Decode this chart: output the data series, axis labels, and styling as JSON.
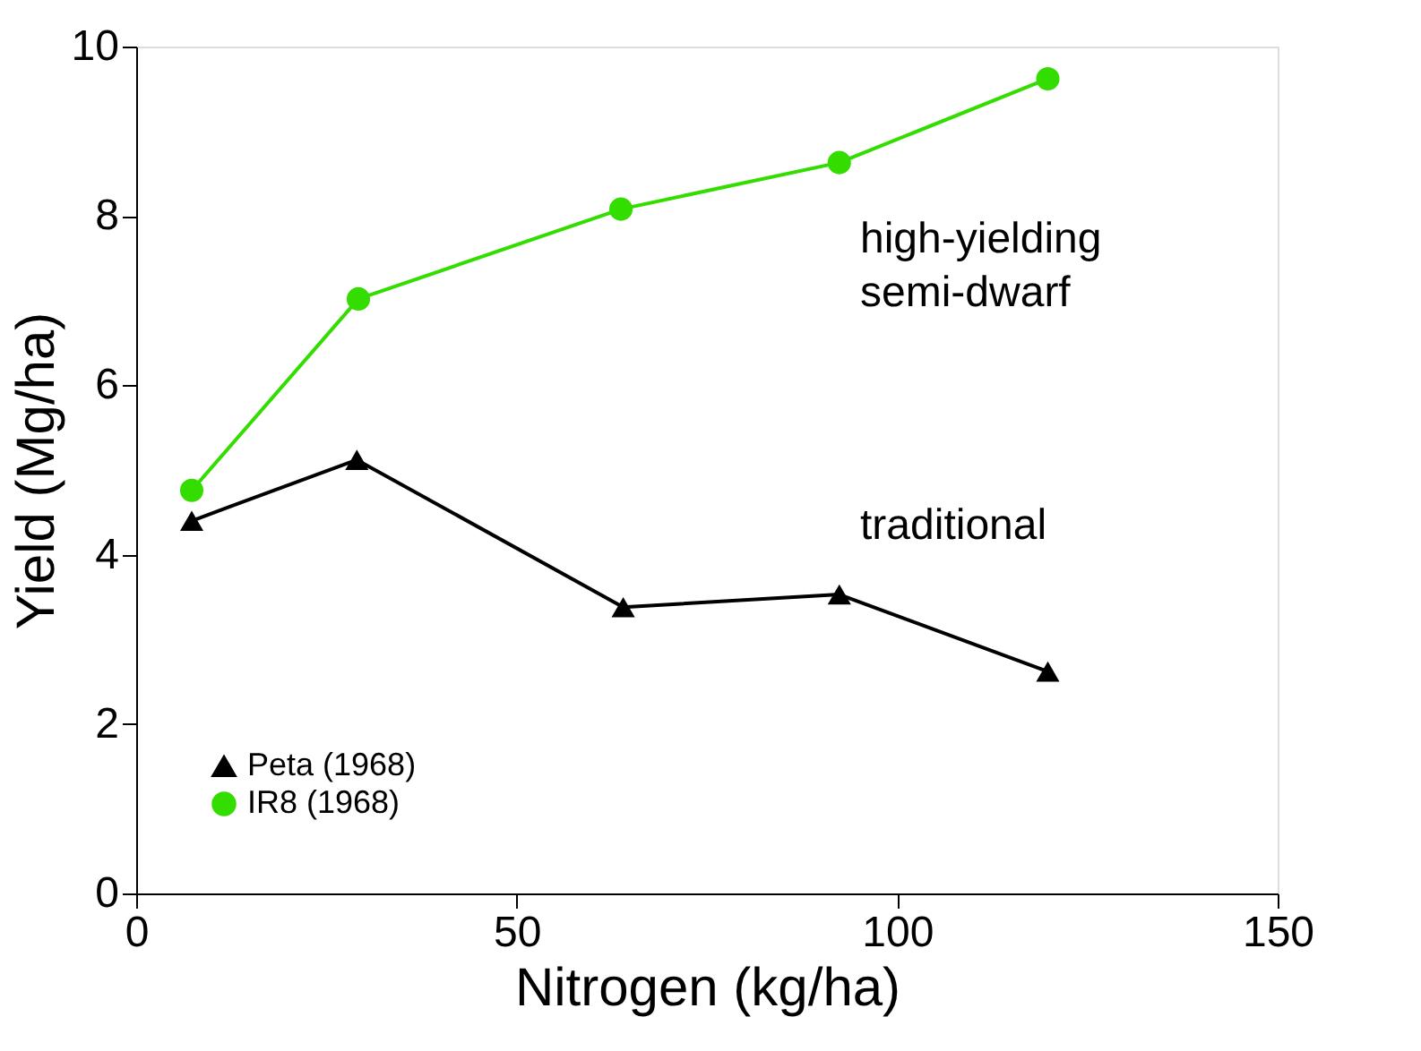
{
  "chart_data": {
    "type": "line",
    "xlabel": "Nitrogen (kg/ha)",
    "ylabel": "Yield (Mg/ha)",
    "xlim": [
      0,
      150
    ],
    "xticks": [
      0,
      50,
      100,
      150
    ],
    "ylim": [
      0,
      10
    ],
    "yticks": [
      0,
      2,
      4,
      6,
      8,
      10
    ],
    "grid": false,
    "legend": "bottom left",
    "line_style": "solid",
    "series": [
      {
        "name": "Peta (1968)",
        "color": "#000000",
        "marker": "triangle",
        "x": [
          7.3,
          29,
          64,
          92.4,
          119.8
        ],
        "values": [
          4.4,
          5.12,
          3.38,
          3.53,
          2.62
        ]
      },
      {
        "name": "IR8 (1968)",
        "color": "#33dd00",
        "marker": "circle",
        "x": [
          7.3,
          29.2,
          63.7,
          92.4,
          119.8
        ],
        "values": [
          4.76,
          7.02,
          8.08,
          8.63,
          9.62
        ]
      }
    ],
    "annotations": [
      "high-yielding\nsemi-dwarf",
      "traditional"
    ]
  }
}
